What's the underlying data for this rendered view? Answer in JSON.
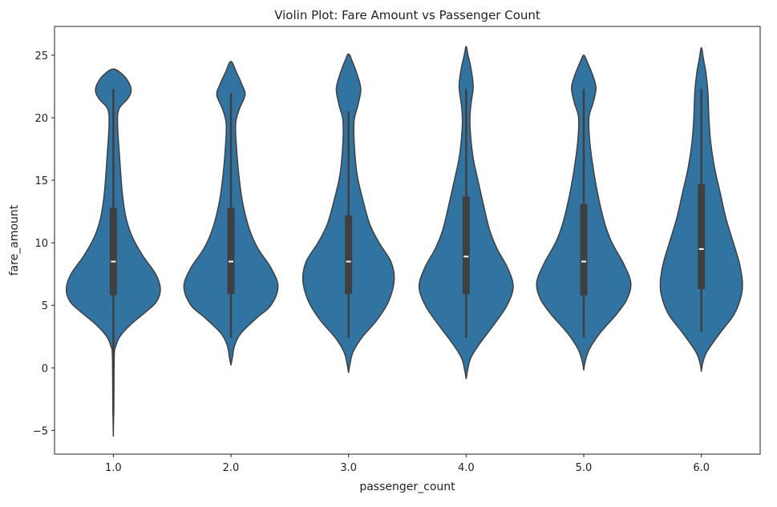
{
  "chart_data": {
    "type": "violin",
    "title": "Violin Plot: Fare Amount vs Passenger Count",
    "xlabel": "passenger_count",
    "ylabel": "fare_amount",
    "categories": [
      "1.0",
      "2.0",
      "3.0",
      "4.0",
      "5.0",
      "6.0"
    ],
    "yticks": [
      -5,
      0,
      5,
      10,
      15,
      20,
      25
    ],
    "ytick_labels": [
      "−5",
      "0",
      "5",
      "10",
      "15",
      "20",
      "25"
    ],
    "ylim": [
      -6.9,
      27.3
    ],
    "grid": false,
    "colors": {
      "fill": "#3274a1",
      "edge": "#3f3f3f",
      "box": "#3f3f3f",
      "median": "#ffffff"
    },
    "violins": [
      {
        "category": "1.0",
        "q1": 5.8,
        "median": 8.5,
        "q3": 12.8,
        "whisker_low": -3.8,
        "whisker_high": 22.3,
        "density": [
          [
            -5.5,
            0
          ],
          [
            -3,
            0.01
          ],
          [
            1,
            0.02
          ],
          [
            1.7,
            0.05
          ],
          [
            2.5,
            0.14
          ],
          [
            3.5,
            0.38
          ],
          [
            4.5,
            0.7
          ],
          [
            5.3,
            0.92
          ],
          [
            6.3,
            1.0
          ],
          [
            7.5,
            0.9
          ],
          [
            9,
            0.62
          ],
          [
            10.5,
            0.4
          ],
          [
            12,
            0.27
          ],
          [
            14,
            0.19
          ],
          [
            17,
            0.13
          ],
          [
            19.5,
            0.09
          ],
          [
            20.7,
            0.12
          ],
          [
            21.5,
            0.3
          ],
          [
            22.2,
            0.38
          ],
          [
            23,
            0.3
          ],
          [
            23.6,
            0.15
          ],
          [
            23.9,
            0
          ]
        ]
      },
      {
        "category": "2.0",
        "q1": 5.9,
        "median": 8.5,
        "q3": 12.8,
        "whisker_low": 2.4,
        "whisker_high": 22.0,
        "density": [
          [
            0.2,
            0
          ],
          [
            0.8,
            0.03
          ],
          [
            1.8,
            0.08
          ],
          [
            2.8,
            0.22
          ],
          [
            4,
            0.55
          ],
          [
            5,
            0.85
          ],
          [
            6.5,
            1.0
          ],
          [
            8,
            0.85
          ],
          [
            9.5,
            0.58
          ],
          [
            11,
            0.4
          ],
          [
            13,
            0.26
          ],
          [
            15,
            0.18
          ],
          [
            17.5,
            0.12
          ],
          [
            19.5,
            0.1
          ],
          [
            20.7,
            0.18
          ],
          [
            21.8,
            0.3
          ],
          [
            22.6,
            0.24
          ],
          [
            23.6,
            0.12
          ],
          [
            24.5,
            0
          ]
        ]
      },
      {
        "category": "3.0",
        "q1": 5.9,
        "median": 8.5,
        "q3": 12.2,
        "whisker_low": 2.4,
        "whisker_high": 20.5,
        "density": [
          [
            -0.4,
            0
          ],
          [
            0.3,
            0.03
          ],
          [
            1.3,
            0.1
          ],
          [
            2.5,
            0.3
          ],
          [
            3.8,
            0.6
          ],
          [
            5.3,
            0.85
          ],
          [
            7,
            0.97
          ],
          [
            8.5,
            0.9
          ],
          [
            10,
            0.65
          ],
          [
            11.5,
            0.45
          ],
          [
            13.5,
            0.3
          ],
          [
            15.5,
            0.18
          ],
          [
            18,
            0.12
          ],
          [
            19.8,
            0.12
          ],
          [
            21,
            0.2
          ],
          [
            22.3,
            0.26
          ],
          [
            23.5,
            0.18
          ],
          [
            24.5,
            0.08
          ],
          [
            25.1,
            0
          ]
        ]
      },
      {
        "category": "4.0",
        "q1": 5.9,
        "median": 8.9,
        "q3": 13.7,
        "whisker_low": 2.4,
        "whisker_high": 22.3,
        "density": [
          [
            -0.9,
            0
          ],
          [
            -0.2,
            0.03
          ],
          [
            0.8,
            0.1
          ],
          [
            2,
            0.3
          ],
          [
            3.5,
            0.6
          ],
          [
            5,
            0.87
          ],
          [
            6.5,
            1.0
          ],
          [
            8,
            0.88
          ],
          [
            9.5,
            0.66
          ],
          [
            11,
            0.5
          ],
          [
            13,
            0.37
          ],
          [
            15,
            0.25
          ],
          [
            17,
            0.14
          ],
          [
            19.5,
            0.08
          ],
          [
            21,
            0.1
          ],
          [
            22.5,
            0.15
          ],
          [
            24,
            0.1
          ],
          [
            25,
            0.04
          ],
          [
            25.7,
            0
          ]
        ]
      },
      {
        "category": "5.0",
        "q1": 5.8,
        "median": 8.5,
        "q3": 13.1,
        "whisker_low": 2.4,
        "whisker_high": 22.3,
        "density": [
          [
            -0.2,
            0
          ],
          [
            0.5,
            0.03
          ],
          [
            1.5,
            0.12
          ],
          [
            2.8,
            0.35
          ],
          [
            4.3,
            0.7
          ],
          [
            5.5,
            0.92
          ],
          [
            6.8,
            1.0
          ],
          [
            8.3,
            0.85
          ],
          [
            10,
            0.6
          ],
          [
            11.5,
            0.45
          ],
          [
            13.5,
            0.32
          ],
          [
            15.5,
            0.22
          ],
          [
            18,
            0.13
          ],
          [
            20,
            0.11
          ],
          [
            21.2,
            0.2
          ],
          [
            22.4,
            0.26
          ],
          [
            23.5,
            0.18
          ],
          [
            24.5,
            0.07
          ],
          [
            25,
            0
          ]
        ]
      },
      {
        "category": "6.0",
        "q1": 6.3,
        "median": 9.5,
        "q3": 14.7,
        "whisker_low": 2.9,
        "whisker_high": 22.3,
        "density": [
          [
            -0.3,
            0
          ],
          [
            0.4,
            0.03
          ],
          [
            1.3,
            0.12
          ],
          [
            2.8,
            0.4
          ],
          [
            4.3,
            0.7
          ],
          [
            5.8,
            0.85
          ],
          [
            7,
            0.87
          ],
          [
            8.5,
            0.8
          ],
          [
            10,
            0.68
          ],
          [
            12,
            0.52
          ],
          [
            14,
            0.4
          ],
          [
            16,
            0.28
          ],
          [
            18,
            0.2
          ],
          [
            20,
            0.16
          ],
          [
            22,
            0.14
          ],
          [
            23.5,
            0.1
          ],
          [
            24.8,
            0.04
          ],
          [
            25.6,
            0
          ]
        ]
      }
    ]
  }
}
